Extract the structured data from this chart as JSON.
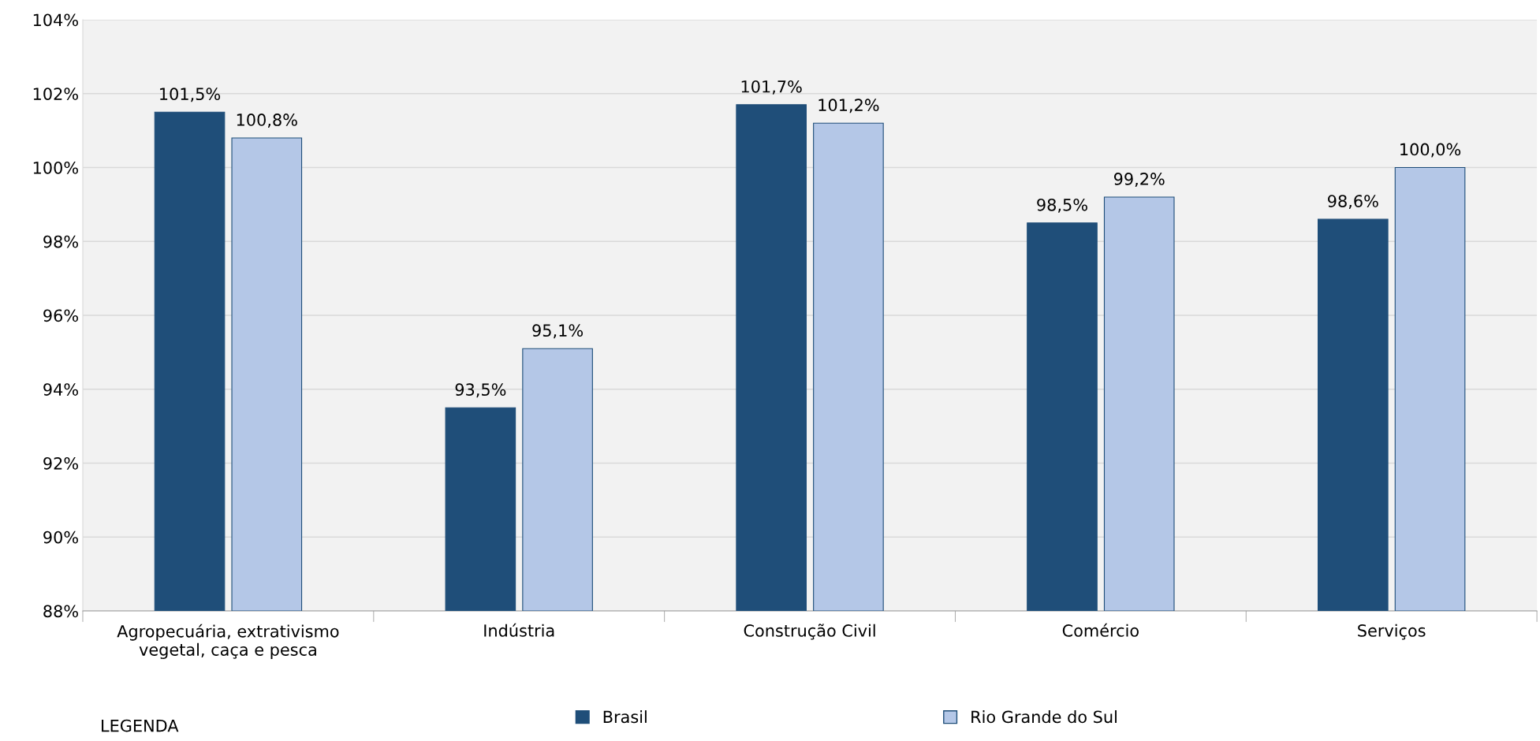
{
  "chart_data": {
    "type": "bar",
    "categories": [
      "Agropecuária, extrativismo\nvegetal, caça e pesca",
      "Indústria",
      "Construção Civil",
      "Comércio",
      "Serviços"
    ],
    "series": [
      {
        "name": "Brasil",
        "color": "#1f4e79",
        "values": [
          101.5,
          93.5,
          101.7,
          98.5,
          98.6
        ],
        "value_labels": [
          "101,5%",
          "93,5%",
          "101,7%",
          "98,5%",
          "98,6%"
        ]
      },
      {
        "name": "Rio Grande do Sul",
        "color": "#b4c7e7",
        "values": [
          100.8,
          95.1,
          101.2,
          99.2,
          100.0
        ],
        "value_labels": [
          "100,8%",
          "95,1%",
          "101,2%",
          "99,2%",
          "100,0%"
        ]
      }
    ],
    "ylim": [
      88,
      104
    ],
    "yticks": [
      {
        "value": 88,
        "label": "88%"
      },
      {
        "value": 90,
        "label": "90%"
      },
      {
        "value": 92,
        "label": "92%"
      },
      {
        "value": 94,
        "label": "94%"
      },
      {
        "value": 96,
        "label": "96%"
      },
      {
        "value": 98,
        "label": "98%"
      },
      {
        "value": 100,
        "label": "100%"
      },
      {
        "value": 102,
        "label": "102%"
      },
      {
        "value": 104,
        "label": "104%"
      }
    ],
    "grid": "y",
    "legend": "bottom",
    "annotations": [
      "LEGENDA"
    ]
  }
}
